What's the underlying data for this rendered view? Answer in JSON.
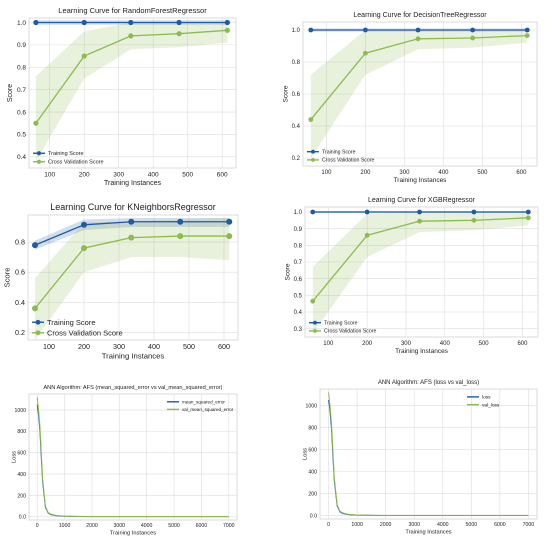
{
  "chart_data": [
    {
      "type": "line",
      "title": "Learning Curve for RandomForestRegressor",
      "xlabel": "Training Instances",
      "ylabel": "Score",
      "xticks": [
        100,
        200,
        300,
        400,
        500,
        600
      ],
      "yticks": [
        0.4,
        0.5,
        0.6,
        0.7,
        0.8,
        0.9,
        1.0
      ],
      "xlim": [
        40,
        640
      ],
      "ylim": [
        0.35,
        1.02
      ],
      "x": [
        60,
        200,
        335,
        475,
        615
      ],
      "series": [
        {
          "name": "Training Score",
          "values": [
            1.0,
            1.0,
            1.0,
            1.0,
            1.0
          ],
          "band_low": [
            0.99,
            0.99,
            0.99,
            0.99,
            0.99
          ],
          "band_high": [
            1.01,
            1.01,
            1.01,
            1.01,
            1.01
          ],
          "color": "#1f5aa6"
        },
        {
          "name": "Cross Validation Score",
          "values": [
            0.55,
            0.85,
            0.94,
            0.95,
            0.965
          ],
          "band_low": [
            0.38,
            0.75,
            0.88,
            0.89,
            0.91
          ],
          "band_high": [
            0.76,
            0.96,
            1.0,
            1.0,
            1.0
          ],
          "color": "#8dbb4f"
        }
      ],
      "legend": "bottom-left",
      "grid": true
    },
    {
      "type": "line",
      "title": "Learning Curve for DecisionTreeRegressor",
      "xlabel": "Training Instances",
      "ylabel": "Score",
      "xticks": [
        100,
        200,
        300,
        400,
        500,
        600
      ],
      "yticks": [
        0.2,
        0.4,
        0.6,
        0.8,
        1.0
      ],
      "xlim": [
        40,
        640
      ],
      "ylim": [
        0.15,
        1.05
      ],
      "x": [
        60,
        200,
        335,
        475,
        615
      ],
      "series": [
        {
          "name": "Training Score",
          "values": [
            1.0,
            1.0,
            1.0,
            1.0,
            1.0
          ],
          "band_low": [
            0.99,
            0.99,
            0.99,
            0.99,
            0.99
          ],
          "band_high": [
            1.01,
            1.01,
            1.01,
            1.01,
            1.01
          ],
          "color": "#1f5aa6"
        },
        {
          "name": "Cross Validation Score",
          "values": [
            0.44,
            0.855,
            0.945,
            0.95,
            0.965
          ],
          "band_low": [
            0.2,
            0.72,
            0.88,
            0.89,
            0.92
          ],
          "band_high": [
            0.72,
            1.0,
            1.0,
            1.0,
            1.0
          ],
          "color": "#8dbb4f"
        }
      ],
      "legend": "bottom-left",
      "grid": true
    },
    {
      "type": "line",
      "title": "Learning Curve for KNeighborsRegressor",
      "xlabel": "Training Instances",
      "ylabel": "Score",
      "xticks": [
        100,
        200,
        300,
        400,
        500,
        600
      ],
      "yticks": [
        0.2,
        0.4,
        0.6,
        0.8
      ],
      "xlim": [
        40,
        640
      ],
      "ylim": [
        0.15,
        0.98
      ],
      "x": [
        60,
        200,
        335,
        475,
        615
      ],
      "series": [
        {
          "name": "Training Score",
          "values": [
            0.78,
            0.915,
            0.935,
            0.935,
            0.935
          ],
          "band_low": [
            0.75,
            0.88,
            0.9,
            0.9,
            0.9
          ],
          "band_high": [
            0.81,
            0.95,
            0.96,
            0.96,
            0.96
          ],
          "color": "#1f5aa6"
        },
        {
          "name": "Cross Validation Score",
          "values": [
            0.36,
            0.76,
            0.83,
            0.84,
            0.84
          ],
          "band_low": [
            0.15,
            0.6,
            0.7,
            0.7,
            0.68
          ],
          "band_high": [
            0.56,
            0.93,
            0.94,
            0.95,
            0.96
          ],
          "color": "#8dbb4f"
        }
      ],
      "legend": "bottom-left",
      "grid": true
    },
    {
      "type": "line",
      "title": "Learning Curve for XGBRegressor",
      "xlabel": "Training Instances",
      "ylabel": "Score",
      "xticks": [
        100,
        200,
        300,
        400,
        500,
        600
      ],
      "yticks": [
        0.3,
        0.4,
        0.5,
        0.6,
        0.7,
        0.8,
        0.9,
        1.0
      ],
      "xlim": [
        40,
        640
      ],
      "ylim": [
        0.25,
        1.03
      ],
      "x": [
        60,
        200,
        335,
        475,
        615
      ],
      "series": [
        {
          "name": "Training Score",
          "values": [
            1.0,
            1.0,
            1.0,
            1.0,
            1.0
          ],
          "band_low": [
            0.995,
            0.995,
            0.995,
            0.995,
            0.995
          ],
          "band_high": [
            1.005,
            1.005,
            1.005,
            1.005,
            1.005
          ],
          "color": "#1f5aa6"
        },
        {
          "name": "Cross Validation Score",
          "values": [
            0.465,
            0.86,
            0.945,
            0.95,
            0.965
          ],
          "band_low": [
            0.27,
            0.73,
            0.88,
            0.89,
            0.92
          ],
          "band_high": [
            0.67,
            0.99,
            1.0,
            1.0,
            1.0
          ],
          "color": "#8dbb4f"
        }
      ],
      "legend": "bottom-left",
      "grid": true
    },
    {
      "type": "line",
      "title": "ANN Algorithm: AFS (mean_squared_error vs val_mean_squared_error)",
      "xlabel": "Training Instances",
      "ylabel": "Loss",
      "xticks": [
        0,
        1000,
        2000,
        3000,
        4000,
        5000,
        6000,
        7000
      ],
      "yticks": [
        0,
        200,
        400,
        600,
        800,
        1000
      ],
      "xlim": [
        -300,
        7300
      ],
      "ylim": [
        -30,
        1150
      ],
      "x": [
        0,
        50,
        100,
        150,
        200,
        300,
        400,
        500,
        700,
        1000,
        1500,
        2000,
        3000,
        4000,
        5000,
        6000,
        7000
      ],
      "series": [
        {
          "name": "mean_squared_error",
          "values": [
            1050,
            950,
            800,
            550,
            320,
            90,
            35,
            20,
            10,
            5,
            3,
            2,
            2,
            2,
            2,
            2,
            2
          ],
          "color": "#1f5aa6"
        },
        {
          "name": "val_mean_squared_error",
          "values": [
            1120,
            1000,
            850,
            600,
            350,
            100,
            40,
            25,
            12,
            6,
            4,
            3,
            3,
            3,
            3,
            3,
            3
          ],
          "color": "#8dbb4f"
        }
      ],
      "legend": "top-right",
      "grid": true
    },
    {
      "type": "line",
      "title": "ANN Algorithm: AFS (loss vs val_loss)",
      "xlabel": "Training Instances",
      "ylabel": "Loss",
      "xticks": [
        0,
        1000,
        2000,
        3000,
        4000,
        5000,
        6000,
        7000
      ],
      "yticks": [
        0,
        200,
        400,
        600,
        800,
        1000
      ],
      "xlim": [
        -300,
        7300
      ],
      "ylim": [
        -30,
        1150
      ],
      "x": [
        0,
        50,
        100,
        150,
        200,
        300,
        400,
        500,
        700,
        1000,
        1500,
        2000,
        3000,
        4000,
        5000,
        6000,
        7000
      ],
      "series": [
        {
          "name": "loss",
          "values": [
            1050,
            950,
            800,
            550,
            320,
            90,
            35,
            20,
            10,
            5,
            3,
            2,
            2,
            2,
            2,
            2,
            2
          ],
          "color": "#1f5aa6"
        },
        {
          "name": "val_loss",
          "values": [
            1120,
            1000,
            850,
            600,
            350,
            100,
            40,
            25,
            12,
            6,
            4,
            3,
            3,
            3,
            3,
            3,
            3
          ],
          "color": "#8dbb4f"
        }
      ],
      "legend": "top-right",
      "grid": true
    }
  ]
}
